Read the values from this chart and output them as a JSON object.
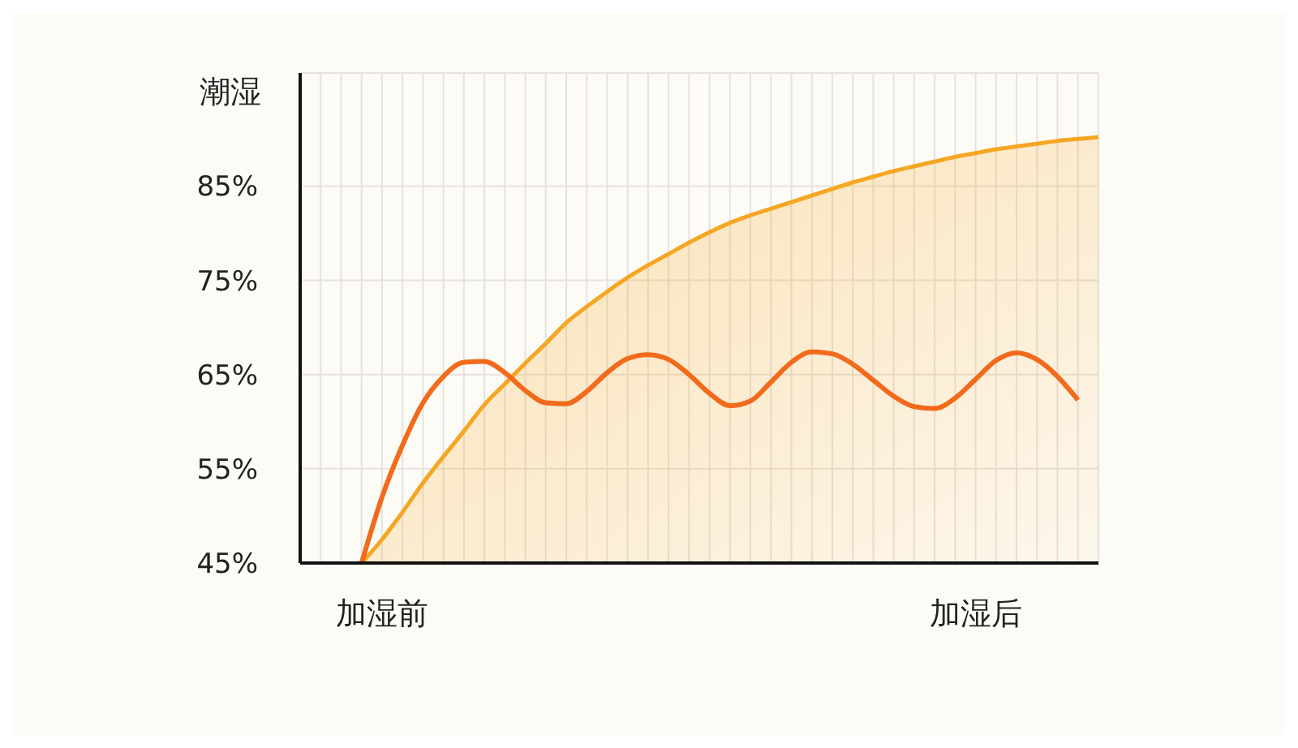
{
  "chart_data": {
    "type": "line",
    "ylabel": "潮湿",
    "categories": [
      null,
      null,
      null,
      null,
      "加湿前",
      null,
      null,
      null,
      null,
      null,
      null,
      null,
      null,
      null,
      null,
      null,
      null,
      null,
      null,
      null,
      null,
      null,
      null,
      null,
      null,
      null,
      null,
      null,
      null,
      null,
      null,
      null,
      null,
      "加湿后",
      null,
      null,
      null,
      null,
      null,
      null
    ],
    "ylim": [
      45,
      97
    ],
    "yticks": [
      {
        "value": 45,
        "label": "45%"
      },
      {
        "value": 55,
        "label": "55%"
      },
      {
        "value": 65,
        "label": "65%"
      },
      {
        "value": 75,
        "label": "75%"
      },
      {
        "value": 85,
        "label": "85%"
      }
    ],
    "grid": true,
    "marker": "none",
    "line_style": "solid",
    "series": [
      {
        "type": "area",
        "color": "#f5a623",
        "values": [
          null,
          null,
          null,
          45,
          47.5,
          50.4,
          53.5,
          56.3,
          59,
          61.8,
          64,
          66.2,
          68.3,
          70.5,
          72.2,
          73.8,
          75.3,
          76.6,
          77.8,
          79,
          80.1,
          81.1,
          81.9,
          82.6,
          83.3,
          84,
          84.7,
          85.4,
          86,
          86.6,
          87.1,
          87.6,
          88.1,
          88.5,
          88.9,
          89.2,
          89.5,
          89.8,
          90,
          90.2
        ]
      },
      {
        "color": "#f26a1b",
        "values": [
          null,
          null,
          null,
          45,
          52,
          57.5,
          62,
          64.8,
          66.3,
          66.4,
          65.2,
          63.3,
          62,
          61.9,
          63.2,
          65.2,
          66.7,
          67.1,
          66.6,
          65,
          63,
          61.7,
          62.2,
          64.2,
          66.3,
          67.4,
          67.2,
          66.1,
          64.4,
          62.7,
          61.6,
          61.4,
          62.5,
          64.5,
          66.5,
          67.3,
          66.6,
          64.8,
          62.3,
          null
        ]
      }
    ]
  }
}
